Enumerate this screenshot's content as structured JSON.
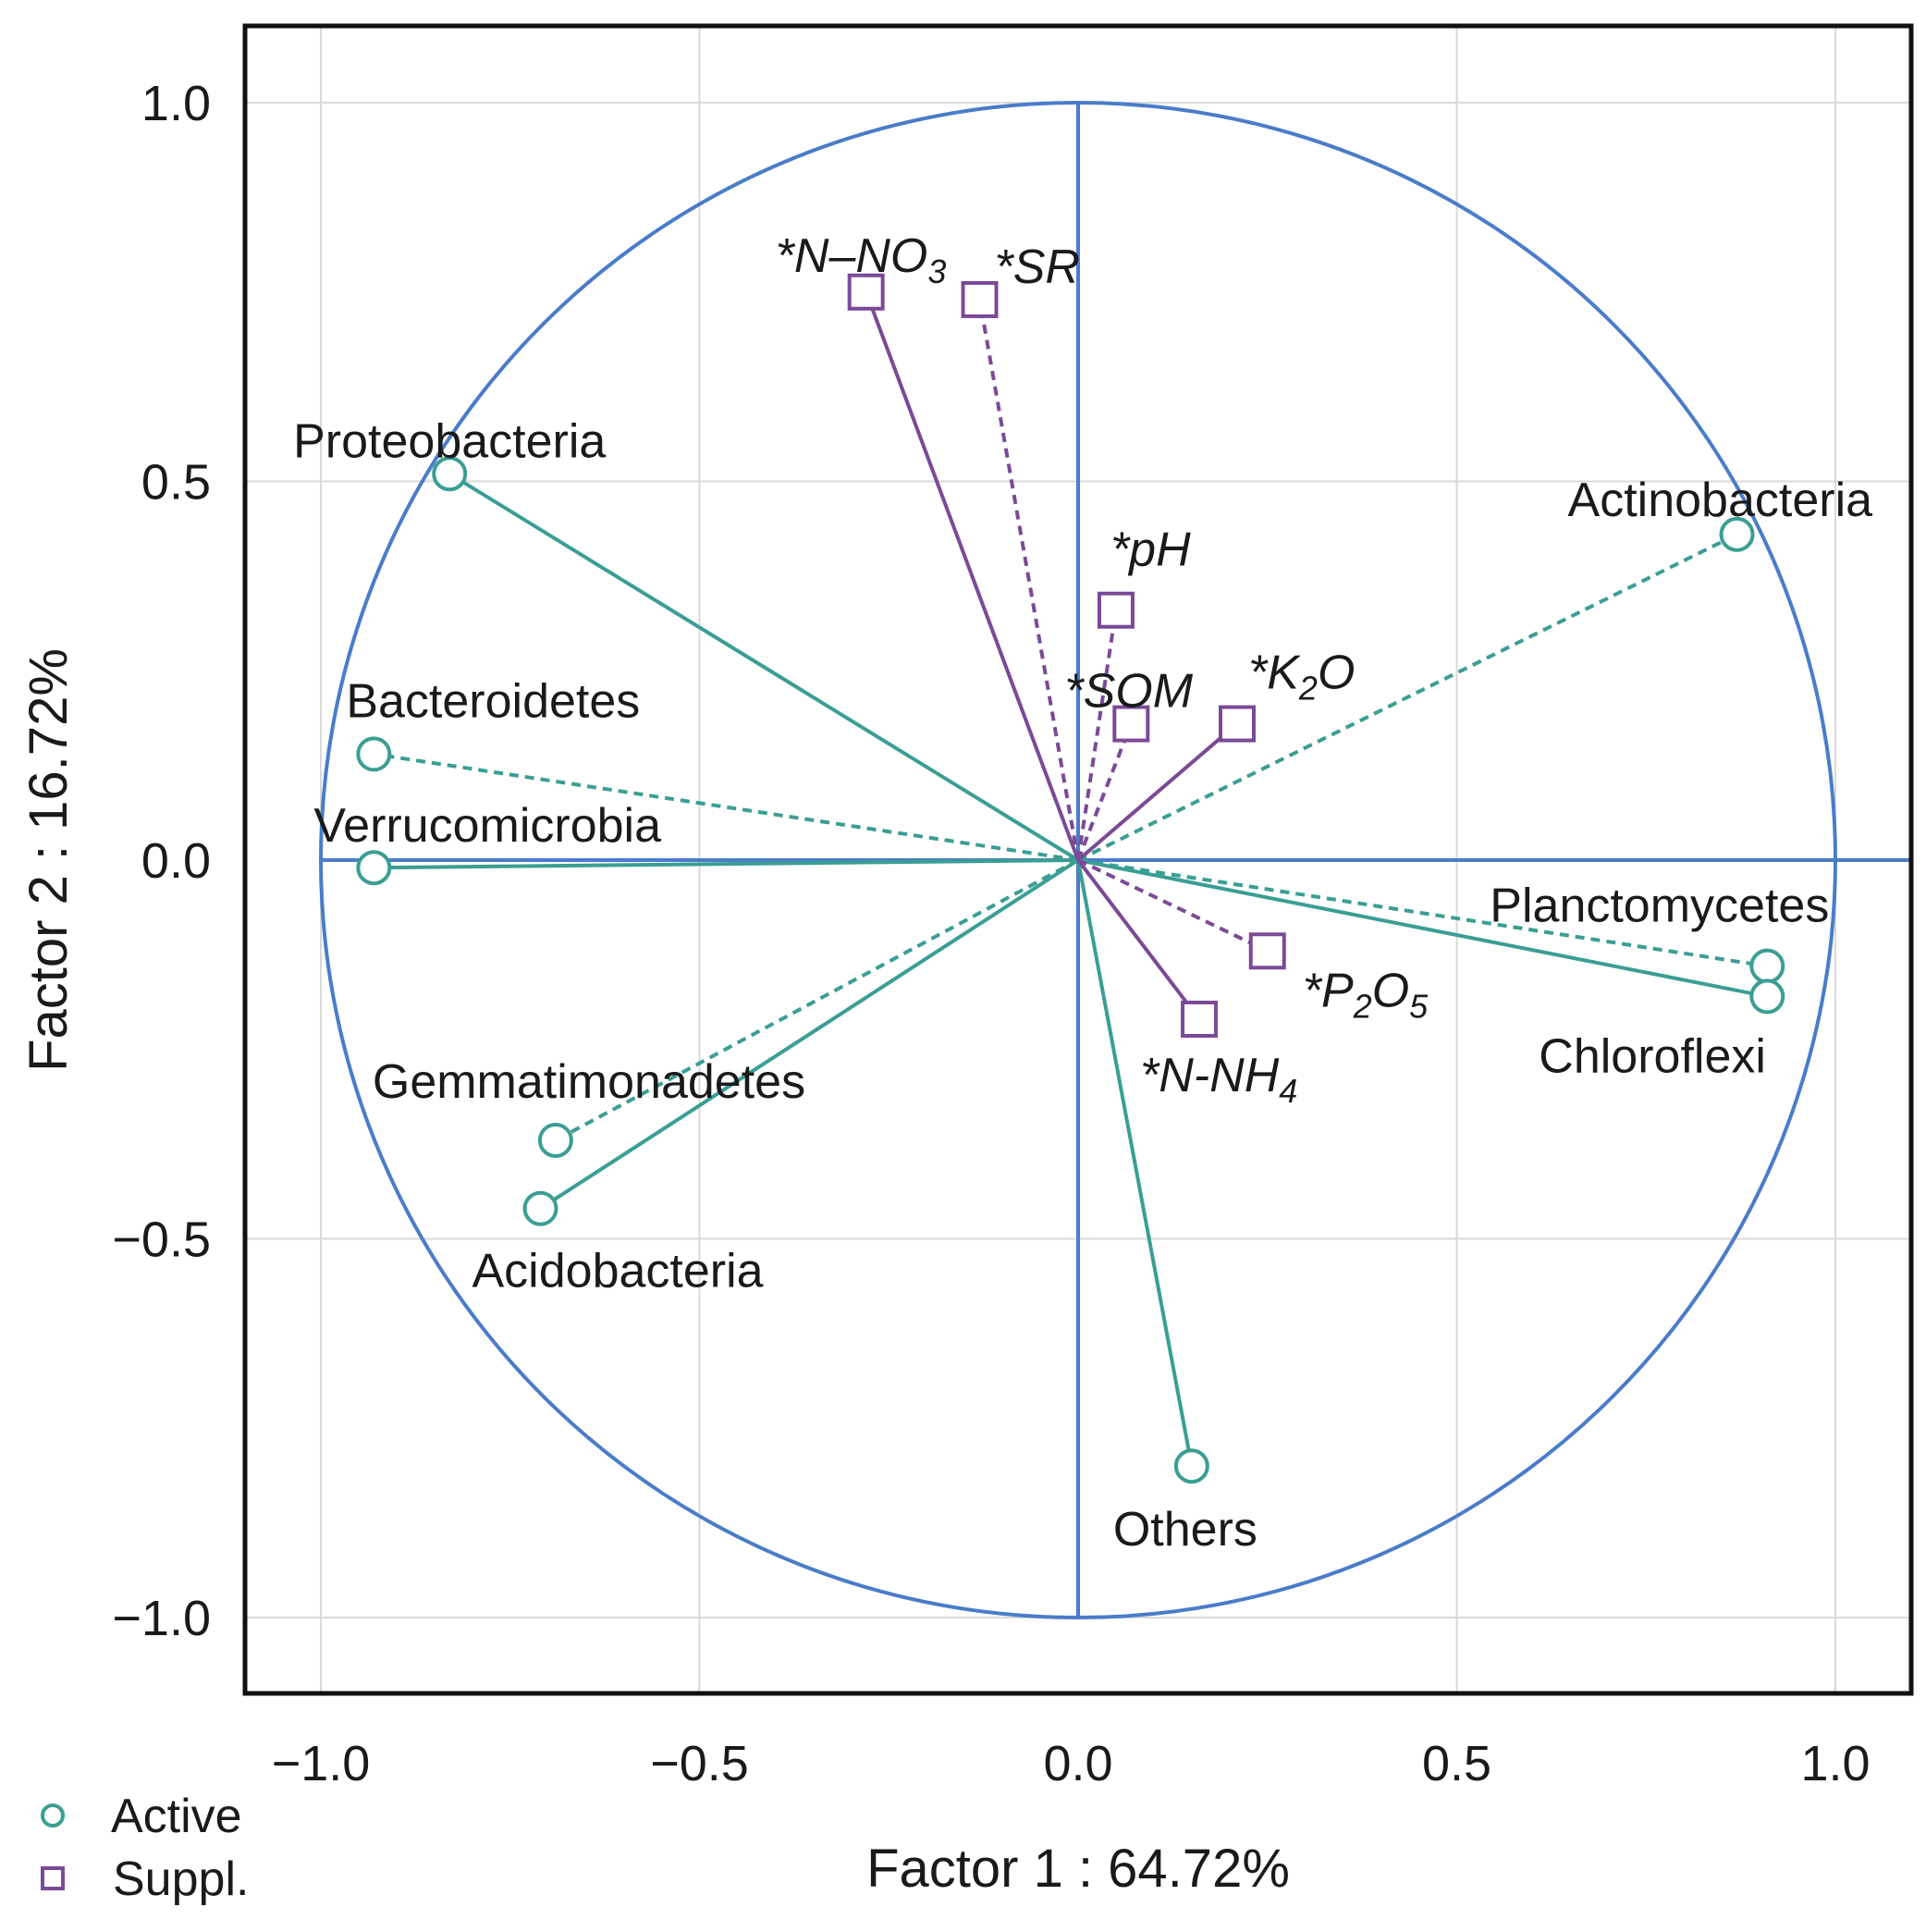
{
  "chart_data": {
    "type": "scatter",
    "subtype": "pca-variable-correlation-circle",
    "xlabel": "Factor 1 : 64.72%",
    "ylabel": "Factor 2 : 16.72%",
    "xlim": [
      -1.1,
      1.1
    ],
    "ylim": [
      -1.1,
      1.1
    ],
    "x_ticks": [
      -1.0,
      -0.5,
      0.0,
      0.5,
      1.0
    ],
    "y_ticks": [
      -1.0,
      -0.5,
      0.0,
      0.5,
      1.0
    ],
    "x_tick_labels": [
      "−1.0",
      "−0.5",
      "0.0",
      "0.5",
      "1.0"
    ],
    "y_tick_labels": [
      "−1.0",
      "−0.5",
      "0.0",
      "0.5",
      "1.0"
    ],
    "grid": true,
    "unit_circle": true,
    "colors": {
      "active": "#3a9e94",
      "suppl": "#7b4a96",
      "axis": "#4a7cc9",
      "grid": "#d9d9d9",
      "frame": "#111111"
    },
    "legend": {
      "position": "bottom-left",
      "entries": [
        {
          "label": "Active",
          "marker": "circle"
        },
        {
          "label": "Suppl.",
          "marker": "square"
        }
      ]
    },
    "series": [
      {
        "name": "Active",
        "marker": "circle",
        "points": [
          {
            "label": "Proteobacteria",
            "x": -0.83,
            "y": 0.51,
            "line": "solid"
          },
          {
            "label": "Bacteroidetes",
            "x": -0.93,
            "y": 0.14,
            "line": "dashed"
          },
          {
            "label": "Verrucomicrobia",
            "x": -0.93,
            "y": -0.01,
            "line": "solid"
          },
          {
            "label": "Gemmatimonadetes",
            "x": -0.69,
            "y": -0.37,
            "line": "dashed"
          },
          {
            "label": "Acidobacteria",
            "x": -0.71,
            "y": -0.46,
            "line": "solid"
          },
          {
            "label": "Actinobacteria",
            "x": 0.87,
            "y": 0.43,
            "line": "dashed"
          },
          {
            "label": "Planctomycetes",
            "x": 0.91,
            "y": -0.14,
            "line": "dashed"
          },
          {
            "label": "Chloroflexi",
            "x": 0.91,
            "y": -0.18,
            "line": "solid"
          },
          {
            "label": "Others",
            "x": 0.15,
            "y": -0.8,
            "line": "solid"
          }
        ]
      },
      {
        "name": "Suppl.",
        "marker": "square",
        "points": [
          {
            "label": "*N–NO",
            "sub": "3",
            "x": -0.28,
            "y": 0.75,
            "line": "solid"
          },
          {
            "label": "*SR",
            "sub": "",
            "x": -0.13,
            "y": 0.74,
            "line": "dashed"
          },
          {
            "label": "*pH",
            "sub": "",
            "x": 0.05,
            "y": 0.33,
            "line": "dashed"
          },
          {
            "label": "*SOM",
            "sub": "",
            "x": 0.07,
            "y": 0.18,
            "line": "dashed"
          },
          {
            "label": "*K",
            "sub": "2",
            "tail": "O",
            "x": 0.21,
            "y": 0.18,
            "line": "solid"
          },
          {
            "label": "*P",
            "sub": "2",
            "tail": "O",
            "sub2": "5",
            "x": 0.25,
            "y": -0.12,
            "line": "dashed"
          },
          {
            "label": "*N-NH",
            "sub": "4",
            "x": 0.16,
            "y": -0.21,
            "line": "solid"
          }
        ]
      }
    ]
  }
}
